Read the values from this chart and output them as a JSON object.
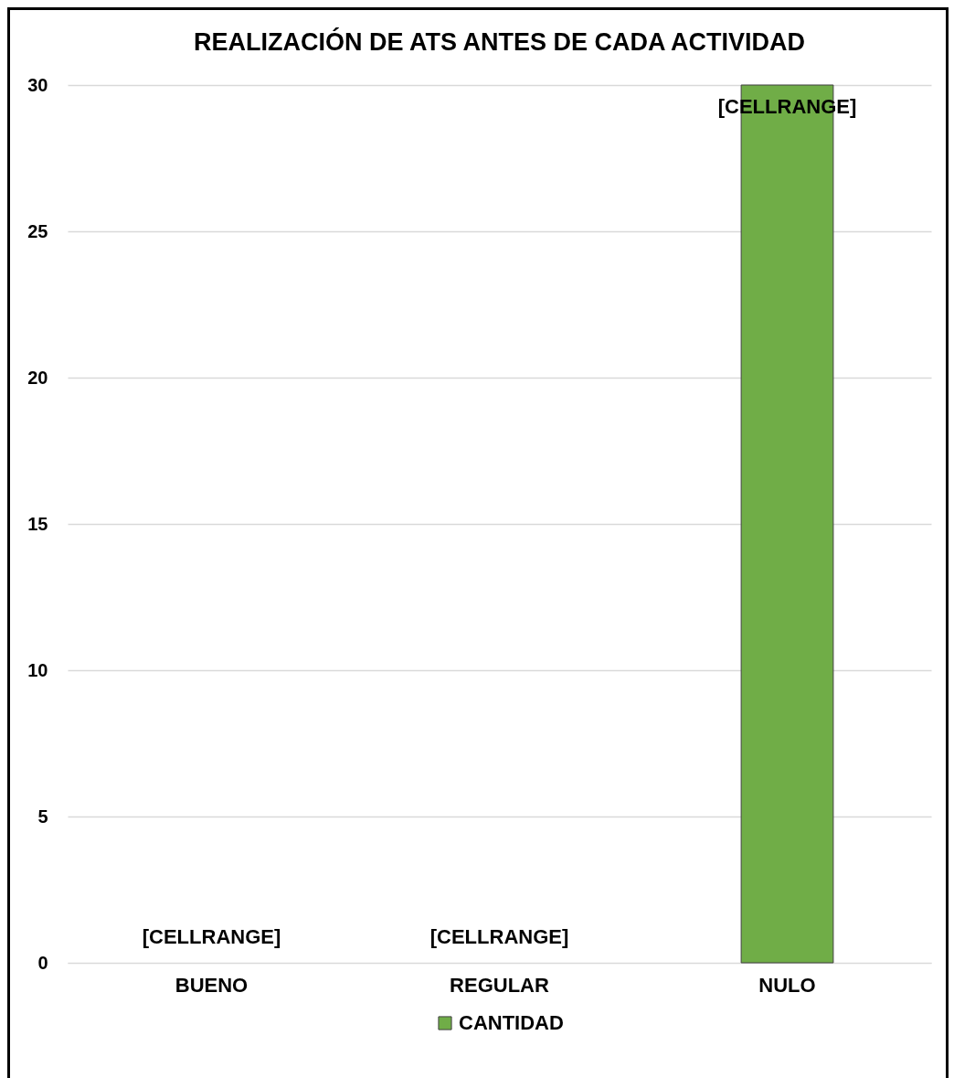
{
  "chart_data": {
    "type": "bar",
    "title": "REALIZACIÓN DE ATS ANTES DE CADA ACTIVIDAD",
    "categories": [
      "BUENO",
      "REGULAR",
      "NULO"
    ],
    "series": [
      {
        "name": "CANTIDAD",
        "color": "#70ad47",
        "values": [
          0,
          0,
          30
        ],
        "value_labels": [
          "[CELLRANGE]",
          "[CELLRANGE]",
          "[CELLRANGE]"
        ]
      }
    ],
    "ylim": [
      0,
      30
    ],
    "yticks": [
      0,
      5,
      10,
      15,
      20,
      25,
      30
    ],
    "grid": "y",
    "legend": "bottom"
  }
}
